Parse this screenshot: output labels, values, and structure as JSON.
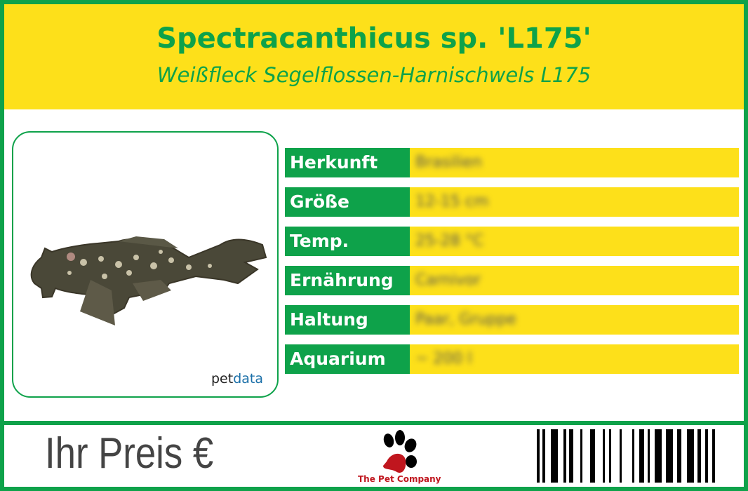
{
  "header": {
    "title": "Spectracanthicus sp. 'L175'",
    "subtitle": "Weißfleck Segelflossen-Harnischwels L175"
  },
  "image": {
    "subject": "fish",
    "brand_logo": "petdata"
  },
  "rows": [
    {
      "label": "Herkunft",
      "value": "Brasilien"
    },
    {
      "label": "Größe",
      "value": "12-15 cm"
    },
    {
      "label": "Temp.",
      "value": "25-28 °C"
    },
    {
      "label": "Ernährung",
      "value": "Carnivor"
    },
    {
      "label": "Haltung",
      "value": "Paar, Gruppe"
    },
    {
      "label": "Aquarium",
      "value": "~ 200 l"
    }
  ],
  "footer": {
    "price_label": "Ihr Preis €",
    "company": "The Pet Company",
    "logo_icon": "paw-icon"
  },
  "colors": {
    "green": "#0ea24a",
    "yellow": "#fde01a",
    "logo_red": "#c0161e"
  }
}
